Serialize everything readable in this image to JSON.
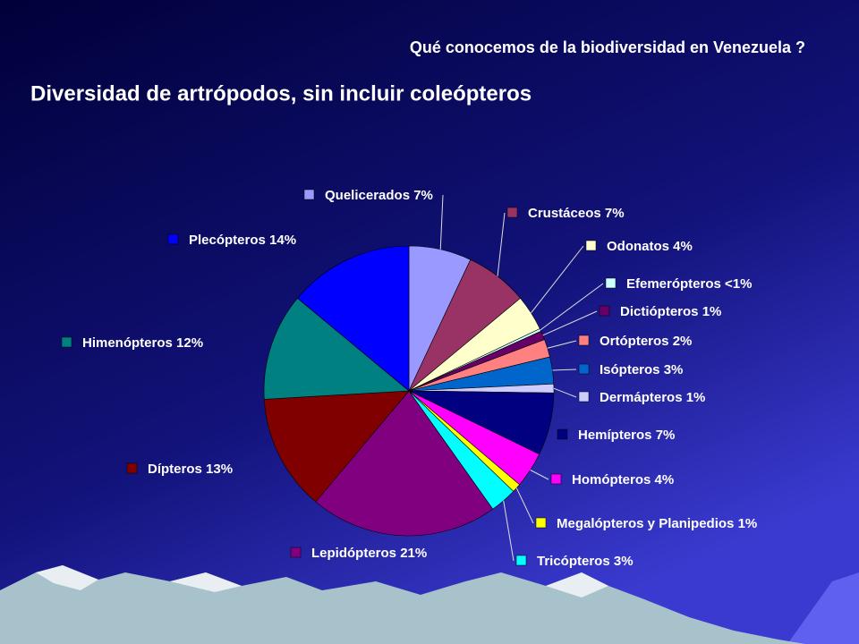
{
  "slide_title": "Qué conocemos de la biodiversidad en Venezuela ?",
  "chart_data": {
    "type": "pie",
    "title": "Diversidad de artrópodos, sin incluir coleópteros",
    "categories": [
      "Quelicerados",
      "Crustáceos",
      "Odonatos",
      "Efemerópteros",
      "Dictiópteros",
      "Ortópteros",
      "Isópteros",
      "Dermápteros",
      "Hemípteros",
      "Homópteros",
      "Megalópteros y Planipedios",
      "Tricópteros",
      "Lepidópteros",
      "Dípteros",
      "Himenópteros",
      "Plecópteros"
    ],
    "values": [
      7,
      7,
      4,
      0.3,
      1,
      2,
      3,
      1,
      7,
      4,
      1,
      3,
      21,
      13,
      12,
      14
    ],
    "value_labels": [
      "7%",
      "7%",
      "4%",
      "<1%",
      "1%",
      "2%",
      "3%",
      "1%",
      "7%",
      "4%",
      "1%",
      "3%",
      "21%",
      "13%",
      "12%",
      "14%"
    ],
    "colors": [
      "#9999ff",
      "#993366",
      "#ffffcc",
      "#ccffff",
      "#660066",
      "#ff8080",
      "#0066cc",
      "#ccccff",
      "#000080",
      "#ff00ff",
      "#ffff00",
      "#00ffff",
      "#800080",
      "#800000",
      "#008080",
      "#0000ff"
    ]
  }
}
